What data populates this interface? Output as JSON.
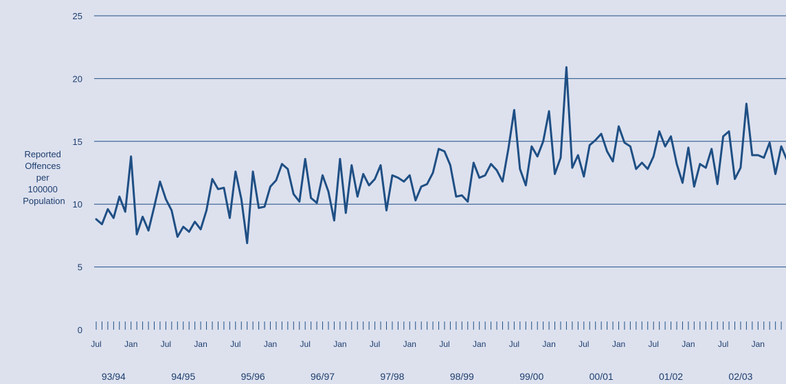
{
  "chart_data": {
    "type": "line",
    "ylabel_lines": [
      "Reported",
      "Offences",
      "per",
      "100000",
      "Population"
    ],
    "yticks": [
      0,
      5,
      10,
      15,
      20,
      25
    ],
    "ylim": [
      0,
      25
    ],
    "grid": true,
    "month_labels": [
      "Jul",
      "Jan",
      "Jul",
      "Jan",
      "Jul",
      "Jan",
      "Jul",
      "Jan",
      "Jul",
      "Jan",
      "Jul",
      "Jan",
      "Jul",
      "Jan",
      "Jul",
      "Jan",
      "Jul",
      "Jan",
      "Jul",
      "Jan"
    ],
    "year_labels": [
      "93/94",
      "94/95",
      "95/96",
      "96/97",
      "97/98",
      "98/99",
      "99/00",
      "00/01",
      "01/02",
      "02/03"
    ],
    "series": [
      {
        "color": "#1f4f84",
        "values": [
          8.8,
          8.4,
          9.6,
          8.9,
          10.6,
          9.4,
          13.8,
          7.6,
          9.0,
          7.9,
          9.8,
          11.8,
          10.4,
          9.5,
          7.4,
          8.2,
          7.8,
          8.6,
          8.0,
          9.5,
          12.0,
          11.2,
          11.3,
          8.9,
          12.6,
          10.4,
          6.9,
          12.6,
          9.7,
          9.8,
          11.4,
          11.9,
          13.2,
          12.8,
          10.8,
          10.2,
          13.6,
          10.5,
          10.1,
          12.3,
          11.0,
          8.7,
          13.6,
          9.3,
          13.1,
          10.6,
          12.4,
          11.5,
          12.0,
          13.1,
          9.5,
          12.3,
          12.1,
          11.8,
          12.3,
          10.3,
          11.4,
          11.6,
          12.5,
          14.4,
          14.2,
          13.1,
          10.6,
          10.7,
          10.2,
          13.3,
          12.1,
          12.3,
          13.2,
          12.7,
          11.8,
          14.4,
          17.5,
          12.8,
          11.5,
          14.6,
          13.8,
          15.0,
          17.4,
          12.4,
          13.7,
          20.9,
          12.9,
          13.9,
          12.2,
          14.7,
          15.1,
          15.6,
          14.2,
          13.4,
          16.2,
          14.9,
          14.6,
          12.8,
          13.3,
          12.8,
          13.8,
          15.8,
          14.6,
          15.4,
          13.2,
          11.7,
          14.5,
          11.4,
          13.2,
          12.9,
          14.4,
          11.6,
          15.4,
          15.8,
          12.0,
          12.9,
          18.0,
          13.9,
          13.9,
          13.7,
          14.9,
          12.4,
          14.6,
          13.5
        ]
      }
    ]
  }
}
